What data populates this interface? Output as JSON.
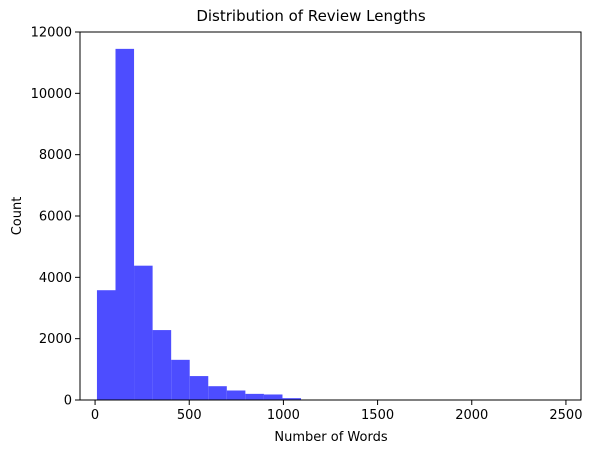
{
  "chart_data": {
    "type": "bar",
    "title": "Distribution of Review Lengths",
    "xlabel": "Number of Words",
    "ylabel": "Count",
    "xlim": [
      -80,
      2580
    ],
    "ylim": [
      0,
      12000
    ],
    "xticks": [
      0,
      500,
      1000,
      1500,
      2000,
      2500
    ],
    "yticks": [
      0,
      2000,
      4000,
      6000,
      8000,
      10000,
      12000
    ],
    "bin_edges": [
      10,
      108.5,
      207,
      305.5,
      404,
      502.5,
      601,
      699.5,
      798,
      896.5,
      995,
      1093.5,
      1192,
      1290.5,
      1389,
      1487.5,
      1586,
      1684.5,
      1783,
      1881.5,
      1980,
      2078.5,
      2177,
      2275.5,
      2374,
      2472.5
    ],
    "counts": [
      3580,
      11450,
      4380,
      2280,
      1310,
      780,
      450,
      310,
      200,
      180,
      60,
      10,
      5,
      3,
      2,
      2,
      1,
      1,
      1,
      0,
      0,
      0,
      0,
      0,
      1
    ],
    "bar_color": "#4d4dff",
    "grid": false,
    "legend": "none"
  }
}
